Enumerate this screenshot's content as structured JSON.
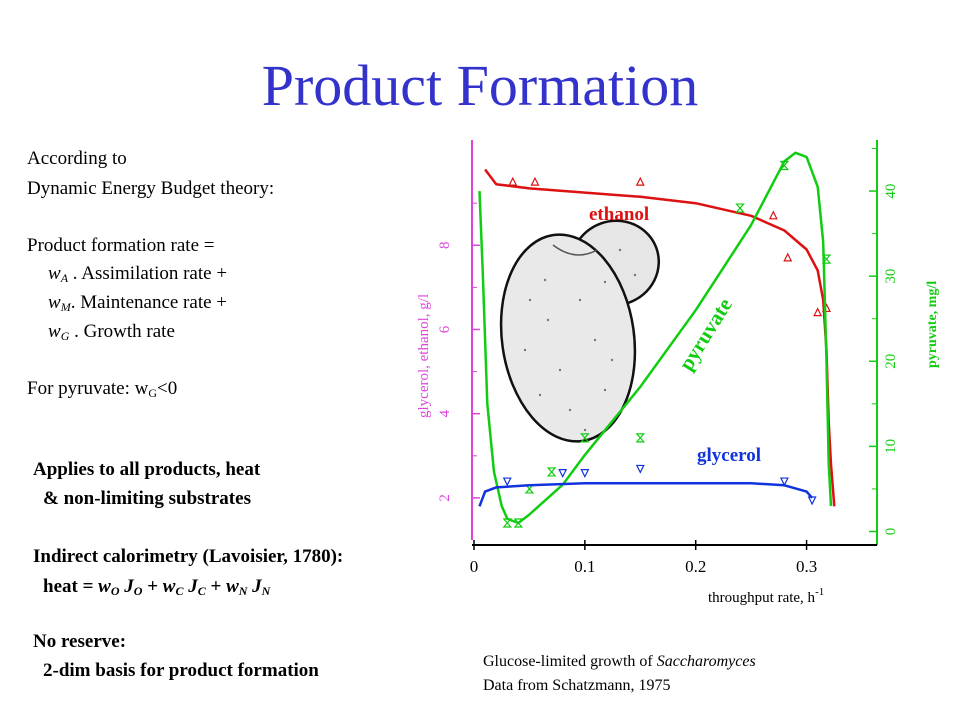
{
  "slide": {
    "title": "Product Formation",
    "deb_block": {
      "intro_1": "According to",
      "intro_2": "Dynamic Energy Budget theory:",
      "rate_label": "Product formation rate =",
      "terms": [
        {
          "w": "w",
          "sub": "A",
          "text": " . Assimilation rate +"
        },
        {
          "w": "w",
          "sub": "M",
          "text": ". Maintenance rate +"
        },
        {
          "w": "w",
          "sub": "G",
          "text": " . Growth rate"
        }
      ],
      "pyruvate_note_pre": "For pyruvate: w",
      "pyruvate_note_sub": "G",
      "pyruvate_note_post": "<0"
    },
    "bold_block": {
      "applies_1": "Applies to all products, heat",
      "applies_2": "& non-limiting substrates",
      "indirect_title": "Indirect calorimetry (Lavoisier, 1780):",
      "heat_eq": {
        "prefix": "heat = ",
        "parts": [
          {
            "w": "w",
            "wsub": "O",
            "j": "J",
            "jsub": "O",
            "op": " + "
          },
          {
            "w": "w",
            "wsub": "C",
            "j": "J",
            "jsub": "C",
            "op": " + "
          },
          {
            "w": "w",
            "wsub": "N",
            "j": "J",
            "jsub": "N",
            "op": ""
          }
        ]
      },
      "no_reserve": "No reserve:",
      "two_dim": "2-dim basis for product formation"
    },
    "caption": {
      "line1_pre": "Glucose-limited growth of ",
      "line1_italic": "Saccharomyces",
      "line2": "Data from Schatzmann, 1975"
    }
  },
  "chart_data": {
    "type": "line",
    "xlabel": "throughput rate, h",
    "xlabel_sup": "-1",
    "ylabel_left": "glycerol, ethanol, g/l",
    "ylabel_right": "pyruvate, mg/l",
    "x_ticks": [
      "0",
      "0.1",
      "0.2",
      "0.3"
    ],
    "left_ticks": [
      "2",
      "4",
      "6",
      "8"
    ],
    "right_ticks": [
      "0",
      "10",
      "20",
      "30",
      "40"
    ],
    "xlim": [
      0,
      0.35
    ],
    "left_ylim": [
      1,
      10.5
    ],
    "right_ylim": [
      -1,
      46
    ],
    "series": [
      {
        "name": "ethanol",
        "axis": "left",
        "color": "#dd1111",
        "line": [
          [
            0.01,
            9.8
          ],
          [
            0.02,
            9.45
          ],
          [
            0.05,
            9.35
          ],
          [
            0.1,
            9.25
          ],
          [
            0.15,
            9.15
          ],
          [
            0.2,
            9.0
          ],
          [
            0.25,
            8.7
          ],
          [
            0.28,
            8.35
          ],
          [
            0.3,
            7.9
          ],
          [
            0.31,
            7.4
          ],
          [
            0.315,
            6.7
          ],
          [
            0.318,
            5.5
          ],
          [
            0.32,
            3.8
          ],
          [
            0.322,
            2.8
          ],
          [
            0.325,
            1.8
          ]
        ],
        "points": [
          [
            0.035,
            9.5
          ],
          [
            0.055,
            9.5
          ],
          [
            0.15,
            9.5
          ],
          [
            0.27,
            8.7
          ],
          [
            0.283,
            7.7
          ],
          [
            0.31,
            6.4
          ],
          [
            0.318,
            6.5
          ]
        ]
      },
      {
        "name": "pyruvate",
        "axis": "right",
        "color": "#11cc11",
        "line": [
          [
            0.005,
            40
          ],
          [
            0.008,
            30
          ],
          [
            0.012,
            15
          ],
          [
            0.018,
            7
          ],
          [
            0.025,
            3
          ],
          [
            0.03,
            1.5
          ],
          [
            0.04,
            1
          ],
          [
            0.05,
            2
          ],
          [
            0.08,
            5.5
          ],
          [
            0.1,
            9
          ],
          [
            0.15,
            17
          ],
          [
            0.2,
            26
          ],
          [
            0.25,
            36
          ],
          [
            0.27,
            41
          ],
          [
            0.28,
            43.5
          ],
          [
            0.29,
            44.5
          ],
          [
            0.3,
            44
          ],
          [
            0.31,
            40.5
          ],
          [
            0.315,
            34
          ],
          [
            0.318,
            20
          ],
          [
            0.32,
            8
          ],
          [
            0.322,
            3
          ]
        ],
        "points": [
          [
            0.03,
            1
          ],
          [
            0.04,
            1
          ],
          [
            0.05,
            5
          ],
          [
            0.07,
            7
          ],
          [
            0.1,
            11
          ],
          [
            0.15,
            11
          ],
          [
            0.24,
            38
          ],
          [
            0.28,
            43
          ],
          [
            0.318,
            32
          ]
        ]
      },
      {
        "name": "glycerol",
        "axis": "left",
        "color": "#1133dd",
        "line": [
          [
            0.005,
            1.8
          ],
          [
            0.01,
            2.15
          ],
          [
            0.02,
            2.25
          ],
          [
            0.05,
            2.3
          ],
          [
            0.1,
            2.35
          ],
          [
            0.15,
            2.35
          ],
          [
            0.2,
            2.35
          ],
          [
            0.25,
            2.35
          ],
          [
            0.28,
            2.3
          ],
          [
            0.3,
            2.15
          ],
          [
            0.305,
            2.0
          ]
        ],
        "points": [
          [
            0.03,
            2.4
          ],
          [
            0.08,
            2.6
          ],
          [
            0.1,
            2.6
          ],
          [
            0.15,
            2.7
          ],
          [
            0.28,
            2.4
          ],
          [
            0.305,
            1.95
          ]
        ]
      }
    ],
    "annotations": [
      "ethanol",
      "pyruvate",
      "glycerol"
    ]
  }
}
